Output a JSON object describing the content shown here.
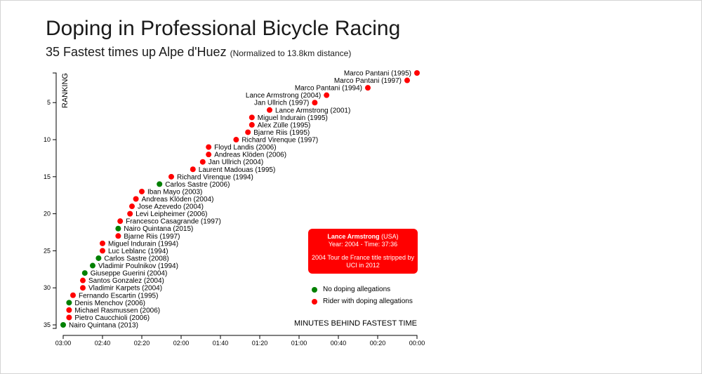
{
  "header": {
    "title": "Doping in Professional Bicycle Racing",
    "subtitle": "35 Fastest times up Alpe d'Huez",
    "subtitle_note": "(Normalized to 13.8km distance)"
  },
  "tooltip": {
    "name": "Lance Armstrong",
    "nationality": "(USA)",
    "line2": "Year: 2004 - Time: 37:36",
    "line3": "2004 Tour de France title stripped by UCI in 2012"
  },
  "legend": {
    "items": [
      {
        "label": "No doping allegations",
        "color": "#008000"
      },
      {
        "label": "Rider with doping allegations",
        "color": "#ff0000"
      }
    ]
  },
  "colors": {
    "doping": "#ff0000",
    "clean": "#008000"
  },
  "chart_data": {
    "type": "scatter",
    "xlabel": "MINUTES BEHIND FASTEST TIME",
    "ylabel": "RANKING",
    "x_unit": "seconds behind fastest time",
    "xlim": [
      180,
      0
    ],
    "ylim": [
      1,
      35
    ],
    "x_ticks": [
      "03:00",
      "02:40",
      "02:20",
      "02:00",
      "01:40",
      "01:20",
      "01:00",
      "00:40",
      "00:20",
      "00:00"
    ],
    "y_ticks": [
      5,
      10,
      15,
      20,
      25,
      30,
      35
    ],
    "points": [
      {
        "rank": 1,
        "label": "Marco Pantani (1995)",
        "x": 0,
        "doping": true
      },
      {
        "rank": 2,
        "label": "Marco Pantani (1997)",
        "x": 5,
        "doping": true
      },
      {
        "rank": 3,
        "label": "Marco Pantani (1994)",
        "x": 25,
        "doping": true
      },
      {
        "rank": 4,
        "label": "Lance Armstrong (2004)",
        "x": 46,
        "doping": true
      },
      {
        "rank": 5,
        "label": "Jan Ullrich (1997)",
        "x": 52,
        "doping": true
      },
      {
        "rank": 6,
        "label": "Lance Armstrong (2001)",
        "x": 75,
        "doping": true
      },
      {
        "rank": 7,
        "label": "Miguel Indurain (1995)",
        "x": 84,
        "doping": true
      },
      {
        "rank": 8,
        "label": "Alex Zülle (1995)",
        "x": 84,
        "doping": true
      },
      {
        "rank": 9,
        "label": "Bjarne Riis (1995)",
        "x": 86,
        "doping": true
      },
      {
        "rank": 10,
        "label": "Richard Virenque (1997)",
        "x": 92,
        "doping": true
      },
      {
        "rank": 11,
        "label": "Floyd Landis (2006)",
        "x": 106,
        "doping": true
      },
      {
        "rank": 12,
        "label": "Andreas Klöden (2006)",
        "x": 106,
        "doping": true
      },
      {
        "rank": 13,
        "label": "Jan Ullrich (2004)",
        "x": 109,
        "doping": true
      },
      {
        "rank": 14,
        "label": "Laurent Madouas (1995)",
        "x": 114,
        "doping": true
      },
      {
        "rank": 15,
        "label": "Richard Virenque (1994)",
        "x": 125,
        "doping": true
      },
      {
        "rank": 16,
        "label": "Carlos Sastre (2006)",
        "x": 131,
        "doping": false
      },
      {
        "rank": 17,
        "label": "Iban Mayo (2003)",
        "x": 140,
        "doping": true
      },
      {
        "rank": 18,
        "label": "Andreas Klöden (2004)",
        "x": 143,
        "doping": true
      },
      {
        "rank": 19,
        "label": "Jose Azevedo (2004)",
        "x": 145,
        "doping": true
      },
      {
        "rank": 20,
        "label": "Levi Leipheimer (2006)",
        "x": 146,
        "doping": true
      },
      {
        "rank": 21,
        "label": "Francesco Casagrande (1997)",
        "x": 151,
        "doping": true
      },
      {
        "rank": 22,
        "label": "Nairo Quintana (2015)",
        "x": 152,
        "doping": false
      },
      {
        "rank": 23,
        "label": "Bjarne Riis (1997)",
        "x": 152,
        "doping": true
      },
      {
        "rank": 24,
        "label": "Miguel Indurain (1994)",
        "x": 160,
        "doping": true
      },
      {
        "rank": 25,
        "label": "Luc Leblanc (1994)",
        "x": 160,
        "doping": true
      },
      {
        "rank": 26,
        "label": "Carlos Sastre (2008)",
        "x": 162,
        "doping": false
      },
      {
        "rank": 27,
        "label": "Vladimir Poulnikov (1994)",
        "x": 165,
        "doping": false
      },
      {
        "rank": 28,
        "label": "Giuseppe Guerini (2004)",
        "x": 169,
        "doping": false
      },
      {
        "rank": 29,
        "label": "Santos Gonzalez (2004)",
        "x": 170,
        "doping": true
      },
      {
        "rank": 30,
        "label": "Vladimir Karpets (2004)",
        "x": 170,
        "doping": true
      },
      {
        "rank": 31,
        "label": "Fernando Escartin (1995)",
        "x": 175,
        "doping": true
      },
      {
        "rank": 32,
        "label": "Denis Menchov (2006)",
        "x": 177,
        "doping": false
      },
      {
        "rank": 33,
        "label": "Michael Rasmussen (2006)",
        "x": 177,
        "doping": true
      },
      {
        "rank": 34,
        "label": "Pietro Caucchioli (2006)",
        "x": 177,
        "doping": true
      },
      {
        "rank": 35,
        "label": "Nairo Quintana (2013)",
        "x": 180,
        "doping": false
      }
    ]
  }
}
